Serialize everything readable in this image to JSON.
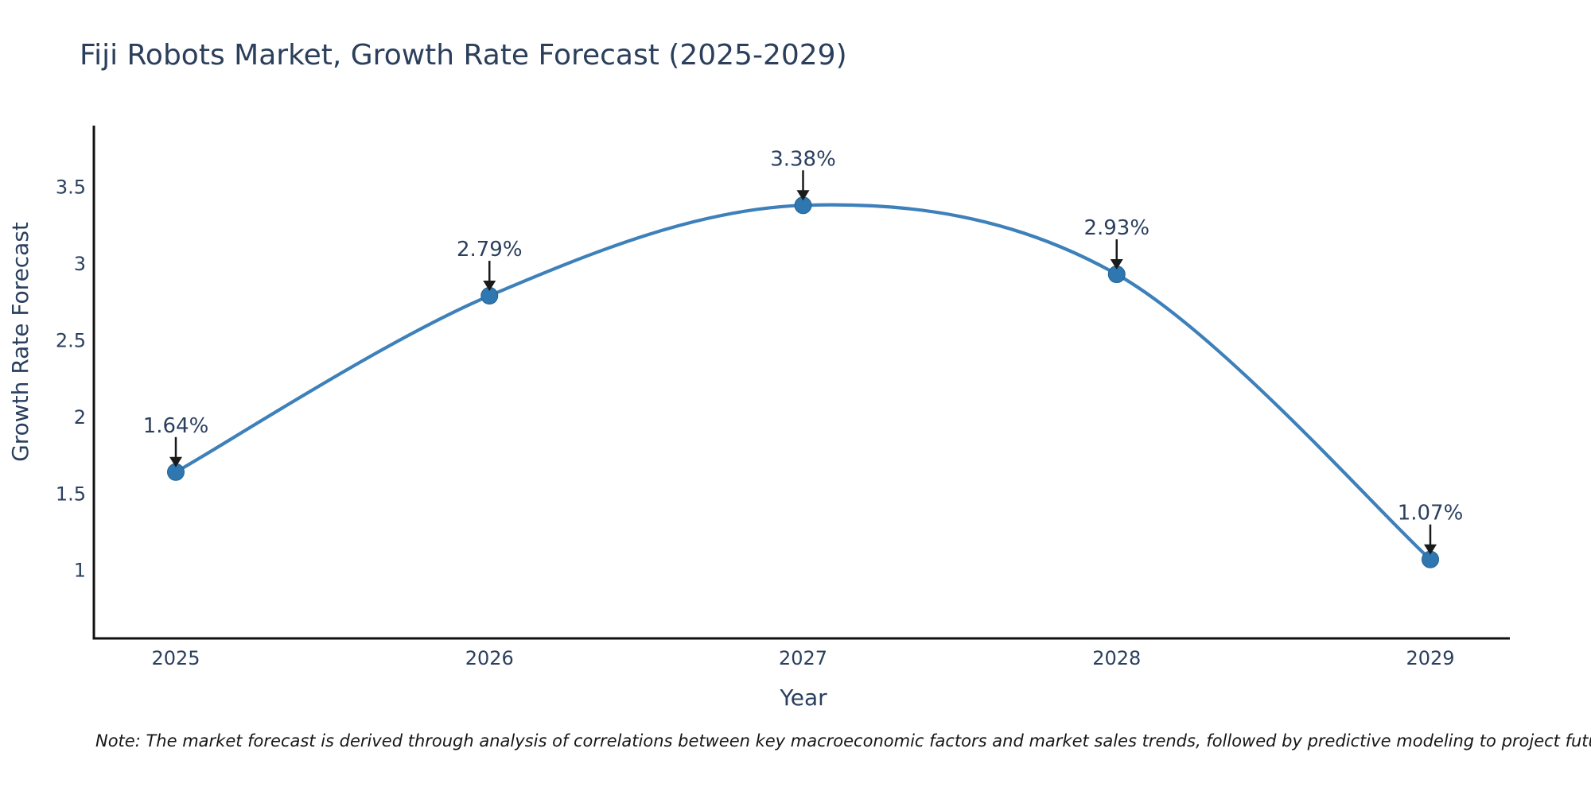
{
  "title": "Fiji Robots Market, Growth Rate Forecast (2025-2029)",
  "note": "Note: The market forecast is derived through analysis of correlations between key macroeconomic factors and market sales trends, followed by predictive modeling to project future sales",
  "chart_data": {
    "type": "line",
    "line_shape": "spline",
    "title": "Fiji Robots Market, Growth Rate Forecast (2025-2029)",
    "xlabel": "Year",
    "ylabel": "Growth Rate Forecast",
    "x": [
      2025,
      2026,
      2027,
      2028,
      2029
    ],
    "y": [
      1.64,
      2.79,
      3.38,
      2.93,
      1.07
    ],
    "point_labels": [
      "1.64%",
      "2.79%",
      "3.38%",
      "2.93%",
      "1.07%"
    ],
    "yticks": [
      1,
      1.5,
      2,
      2.5,
      3,
      3.5
    ],
    "ylim": [
      0.555,
      3.9
    ],
    "grid": false,
    "legend": false,
    "annotations": "value labels with down arrows above each point",
    "colors": {
      "line": "#3d80ba",
      "marker": "#2f77b0",
      "marker_edge": "#25618f",
      "text": "#2a3f5f",
      "axis": "#111111",
      "arrow": "#1a1a1a",
      "background": "#ffffff"
    }
  }
}
